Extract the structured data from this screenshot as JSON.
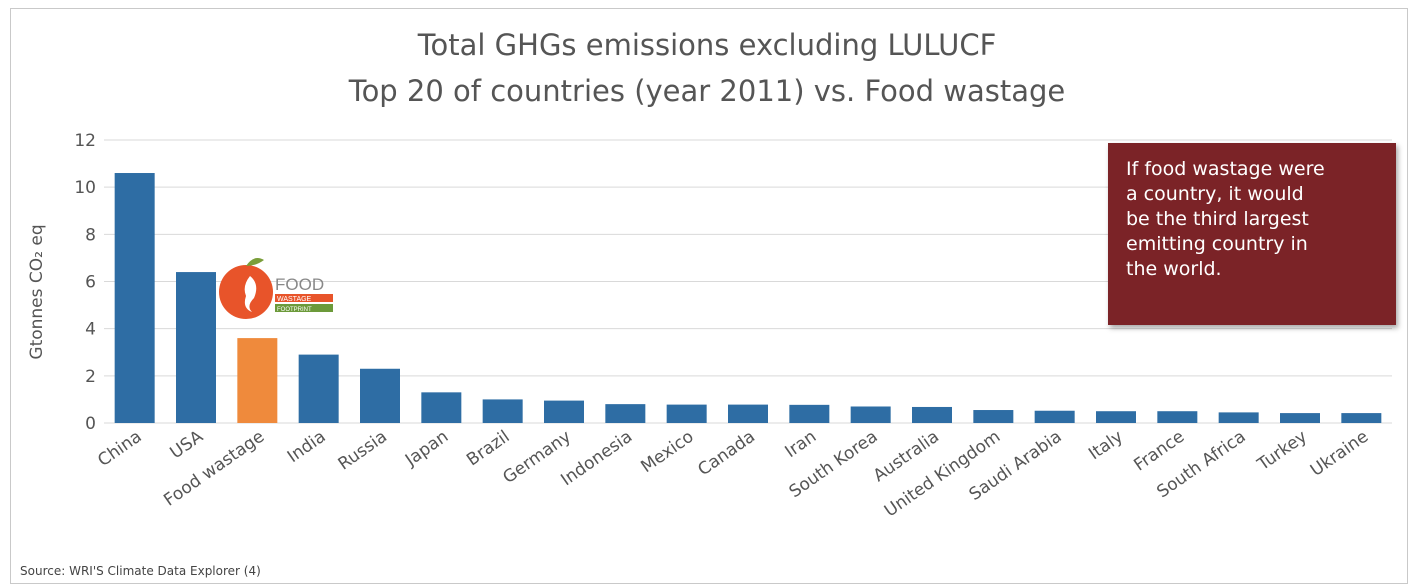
{
  "chart_data": {
    "type": "bar",
    "title": "Total GHGs emissions excluding LULUCF",
    "subtitle": "Top 20 of countries (year 2011) vs. Food wastage",
    "ylabel": "Gtonnes CO₂ eq",
    "xlabel": "",
    "ylim": [
      0,
      12
    ],
    "yticks": [
      "0",
      "2",
      "4",
      "6",
      "8",
      "10",
      "12"
    ],
    "grid": true,
    "categories": [
      "China",
      "USA",
      "Food wastage",
      "India",
      "Russia",
      "Japan",
      "Brazil",
      "Germany",
      "Indonesia",
      "Mexico",
      "Canada",
      "Iran",
      "South Korea",
      "Australia",
      "United Kingdom",
      "Saudi Arabia",
      "Italy",
      "France",
      "South Africa",
      "Turkey",
      "Ukraine"
    ],
    "values": [
      10.6,
      6.4,
      3.6,
      2.9,
      2.3,
      1.3,
      1.0,
      0.95,
      0.8,
      0.78,
      0.78,
      0.77,
      0.7,
      0.68,
      0.55,
      0.52,
      0.5,
      0.5,
      0.45,
      0.42,
      0.42
    ],
    "highlight_index": 2,
    "colors": {
      "bar": "#2e6da4",
      "highlight": "#ef8a3c",
      "grid": "#d9d9d9"
    }
  },
  "callout": {
    "lines": [
      "If food wastage were",
      "a country, it would",
      "be the third largest",
      "emitting country in",
      "the world."
    ],
    "color": "#7b2327"
  },
  "logo": {
    "line1": "FOOD",
    "line2": "WASTAGE",
    "line3": "FOOTPRINT"
  },
  "source": "Source: WRI'S Climate Data Explorer (4)"
}
